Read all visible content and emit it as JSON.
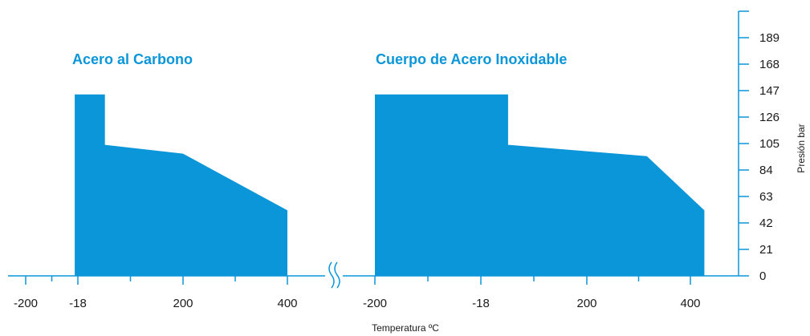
{
  "chart_data": {
    "type": "area",
    "colors": {
      "fill": "#0a96d8",
      "axis": "#0a96d8",
      "title": "#0a96d8",
      "text": "#1a1a1a"
    },
    "xlabel": "Temperatura ºC",
    "ylabel": "Presión bar",
    "y_ticks": [
      0,
      21,
      42,
      63,
      84,
      105,
      126,
      147,
      168,
      189
    ],
    "ylim": [
      0,
      210
    ],
    "axis_break_symbol": "break-mark-icon",
    "panels": [
      {
        "title": "Acero al Carbono",
        "x_ticks": [
          "-200",
          "-18",
          "200",
          "400"
        ],
        "points": [
          {
            "x": -29,
            "y": 144
          },
          {
            "x": 38,
            "y": 144
          },
          {
            "x": 38,
            "y": 104
          },
          {
            "x": 200,
            "y": 97
          },
          {
            "x": 400,
            "y": 52
          }
        ]
      },
      {
        "title": "Cuerpo de Acero Inoxidable",
        "x_ticks": [
          "-200",
          "-18",
          "200",
          "400"
        ],
        "points": [
          {
            "x": -200,
            "y": 144
          },
          {
            "x": 38,
            "y": 144
          },
          {
            "x": 38,
            "y": 104
          },
          {
            "x": 316,
            "y": 95
          },
          {
            "x": 427,
            "y": 52
          }
        ]
      }
    ]
  }
}
